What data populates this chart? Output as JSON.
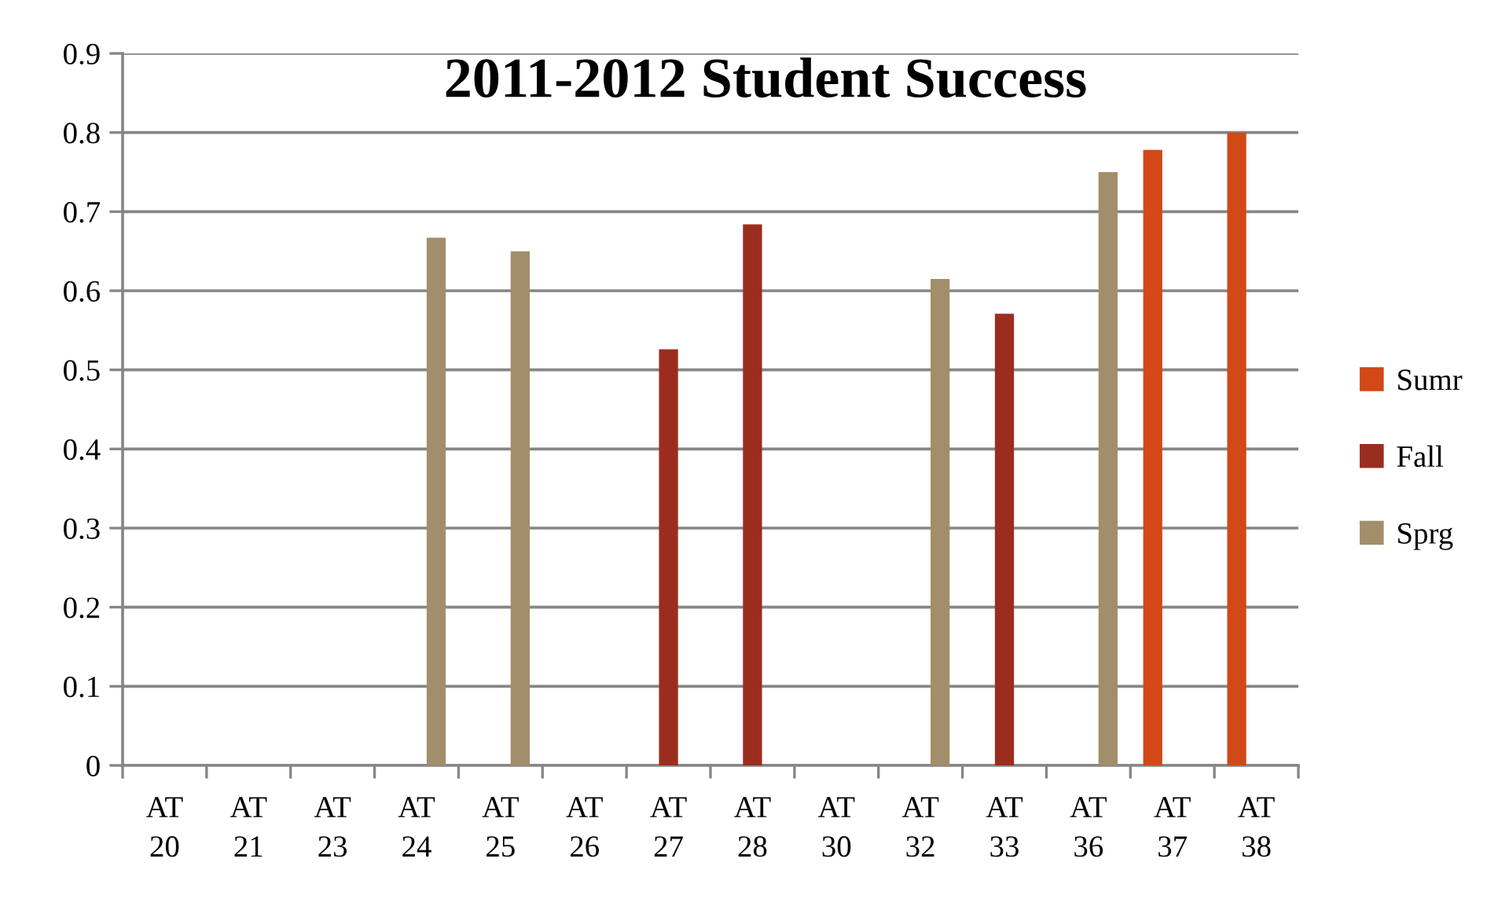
{
  "chart_data": {
    "type": "bar",
    "title": "2011-2012 Student Success",
    "categories": [
      "AT 20",
      "AT 21",
      "AT 23",
      "AT 24",
      "AT 25",
      "AT 26",
      "AT 27",
      "AT 28",
      "AT 30",
      "AT 32",
      "AT 33",
      "AT 36",
      "AT 37",
      "AT 38"
    ],
    "series": [
      {
        "name": "Sumr",
        "color": "#d34817",
        "values": [
          null,
          null,
          null,
          null,
          null,
          null,
          null,
          null,
          null,
          null,
          null,
          null,
          0.778,
          0.8
        ]
      },
      {
        "name": "Fall",
        "color": "#9b2d1f",
        "values": [
          null,
          null,
          null,
          null,
          null,
          null,
          0.526,
          0.684,
          null,
          null,
          0.571,
          null,
          null,
          null
        ]
      },
      {
        "name": "Sprg",
        "color": "#a28e6a",
        "values": [
          null,
          null,
          null,
          0.667,
          0.65,
          null,
          null,
          null,
          null,
          0.615,
          null,
          0.75,
          null,
          null
        ]
      }
    ],
    "ylim": [
      0,
      0.9
    ],
    "yticks": [
      0,
      0.1,
      0.2,
      0.3,
      0.4,
      0.5,
      0.6,
      0.7,
      0.8,
      0.9
    ],
    "grid": "y",
    "legend": "right"
  }
}
